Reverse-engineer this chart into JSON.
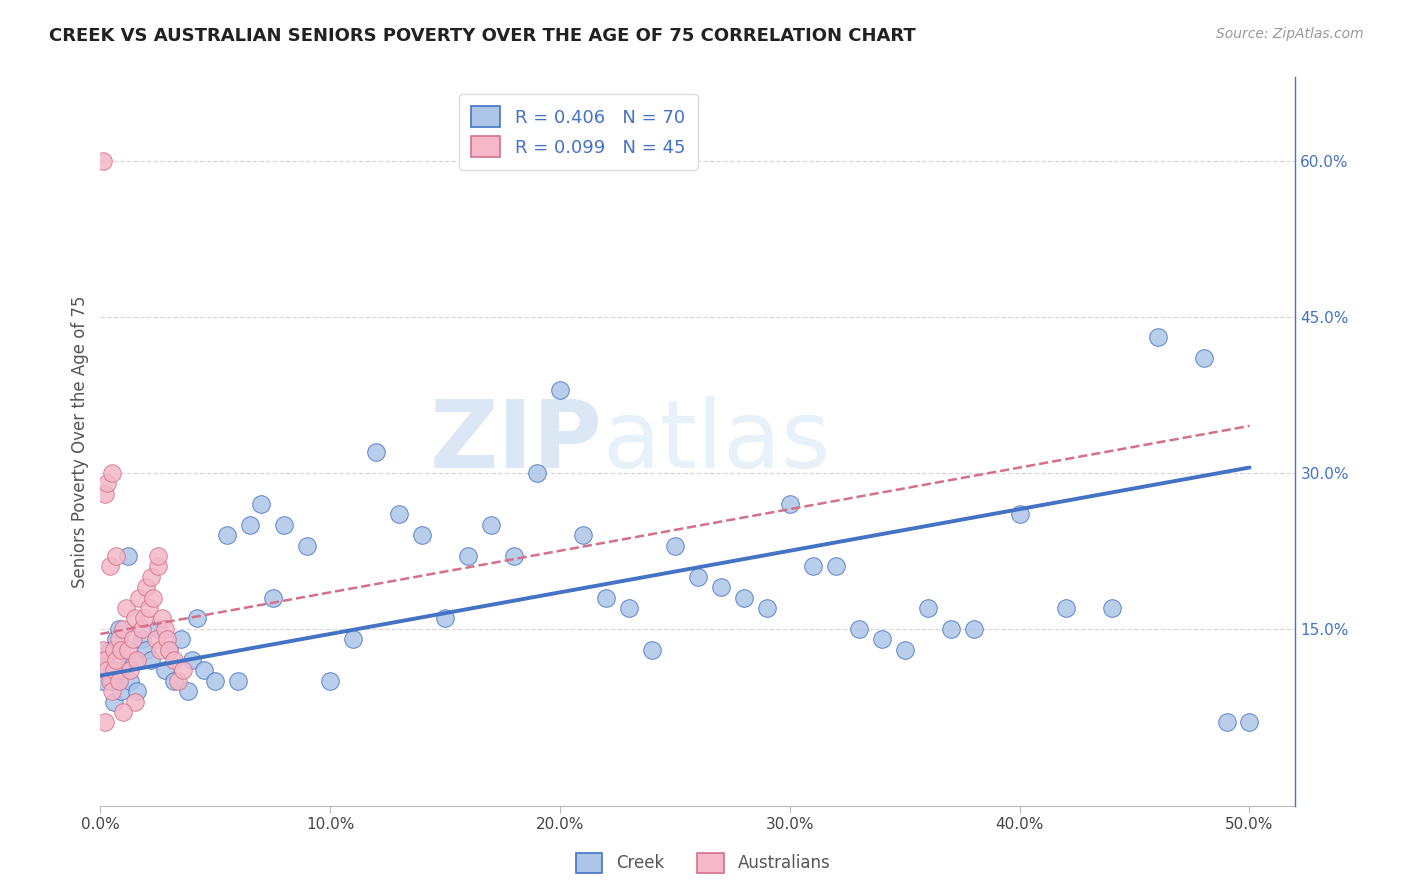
{
  "title": "CREEK VS AUSTRALIAN SENIORS POVERTY OVER THE AGE OF 75 CORRELATION CHART",
  "source": "Source: ZipAtlas.com",
  "ylabel": "Seniors Poverty Over the Age of 75",
  "xlim": [
    0.0,
    0.52
  ],
  "ylim": [
    -0.02,
    0.68
  ],
  "xticks": [
    0.0,
    0.1,
    0.2,
    0.3,
    0.4,
    0.5
  ],
  "xticklabels": [
    "0.0%",
    "10.0%",
    "20.0%",
    "30.0%",
    "40.0%",
    "50.0%"
  ],
  "yticks_right": [
    0.15,
    0.3,
    0.45,
    0.6
  ],
  "yticklabels_right": [
    "15.0%",
    "30.0%",
    "45.0%",
    "60.0%"
  ],
  "creek_R": 0.406,
  "creek_N": 70,
  "australians_R": 0.099,
  "australians_N": 45,
  "creek_color": "#adc6e8",
  "creek_line_color": "#4472c4",
  "australians_color": "#f4b8c8",
  "australians_line_color": "#d4708a",
  "creek_scatter_x": [
    0.001,
    0.002,
    0.003,
    0.004,
    0.005,
    0.006,
    0.007,
    0.008,
    0.009,
    0.01,
    0.012,
    0.013,
    0.015,
    0.016,
    0.018,
    0.02,
    0.022,
    0.025,
    0.028,
    0.03,
    0.032,
    0.035,
    0.038,
    0.04,
    0.042,
    0.045,
    0.05,
    0.055,
    0.06,
    0.065,
    0.07,
    0.075,
    0.08,
    0.09,
    0.1,
    0.11,
    0.12,
    0.13,
    0.14,
    0.15,
    0.16,
    0.17,
    0.18,
    0.19,
    0.2,
    0.21,
    0.22,
    0.23,
    0.24,
    0.25,
    0.26,
    0.27,
    0.28,
    0.29,
    0.3,
    0.31,
    0.32,
    0.33,
    0.34,
    0.35,
    0.36,
    0.37,
    0.38,
    0.4,
    0.42,
    0.44,
    0.46,
    0.48,
    0.49,
    0.5
  ],
  "creek_scatter_y": [
    0.1,
    0.12,
    0.11,
    0.13,
    0.1,
    0.08,
    0.14,
    0.15,
    0.09,
    0.11,
    0.22,
    0.1,
    0.12,
    0.09,
    0.14,
    0.13,
    0.12,
    0.15,
    0.11,
    0.13,
    0.1,
    0.14,
    0.09,
    0.12,
    0.16,
    0.11,
    0.1,
    0.24,
    0.1,
    0.25,
    0.27,
    0.18,
    0.25,
    0.23,
    0.1,
    0.14,
    0.32,
    0.26,
    0.24,
    0.16,
    0.22,
    0.25,
    0.22,
    0.3,
    0.38,
    0.24,
    0.18,
    0.17,
    0.13,
    0.23,
    0.2,
    0.19,
    0.18,
    0.17,
    0.27,
    0.21,
    0.21,
    0.15,
    0.14,
    0.13,
    0.17,
    0.15,
    0.15,
    0.26,
    0.17,
    0.17,
    0.43,
    0.41,
    0.06,
    0.06
  ],
  "australians_scatter_x": [
    0.001,
    0.002,
    0.002,
    0.003,
    0.003,
    0.004,
    0.004,
    0.005,
    0.005,
    0.006,
    0.006,
    0.007,
    0.007,
    0.008,
    0.008,
    0.009,
    0.01,
    0.011,
    0.012,
    0.013,
    0.014,
    0.015,
    0.016,
    0.017,
    0.018,
    0.019,
    0.02,
    0.021,
    0.022,
    0.023,
    0.024,
    0.025,
    0.026,
    0.027,
    0.028,
    0.029,
    0.03,
    0.032,
    0.034,
    0.036,
    0.001,
    0.002,
    0.025,
    0.015,
    0.01
  ],
  "australians_scatter_y": [
    0.13,
    0.12,
    0.28,
    0.11,
    0.29,
    0.1,
    0.21,
    0.09,
    0.3,
    0.13,
    0.11,
    0.12,
    0.22,
    0.14,
    0.1,
    0.13,
    0.15,
    0.17,
    0.13,
    0.11,
    0.14,
    0.16,
    0.12,
    0.18,
    0.15,
    0.16,
    0.19,
    0.17,
    0.2,
    0.18,
    0.14,
    0.21,
    0.13,
    0.16,
    0.15,
    0.14,
    0.13,
    0.12,
    0.1,
    0.11,
    0.6,
    0.06,
    0.22,
    0.08,
    0.07
  ],
  "creek_trend_x": [
    0.0,
    0.5
  ],
  "creek_trend_y": [
    0.105,
    0.305
  ],
  "aus_trend_x": [
    0.0,
    0.5
  ],
  "aus_trend_y": [
    0.145,
    0.345
  ],
  "watermark_zip": "ZIP",
  "watermark_atlas": "atlas",
  "background_color": "#ffffff",
  "grid_color": "#d8d8d8"
}
